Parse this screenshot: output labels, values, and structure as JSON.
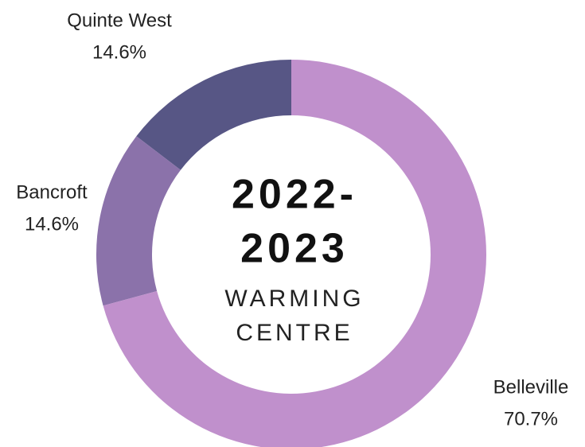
{
  "chart_data": {
    "type": "donut",
    "center_title_lines": [
      "2022-",
      "2023"
    ],
    "center_subtitle_lines": [
      "WARMING",
      "CENTRE"
    ],
    "categories": [
      "Belleville",
      "Bancroft",
      "Quinte West"
    ],
    "values": [
      70.7,
      14.6,
      14.6
    ],
    "value_labels": [
      "70.7%",
      "14.6%",
      "14.6%"
    ],
    "colors": [
      "#c090cc",
      "#8b72aa",
      "#575685"
    ]
  }
}
